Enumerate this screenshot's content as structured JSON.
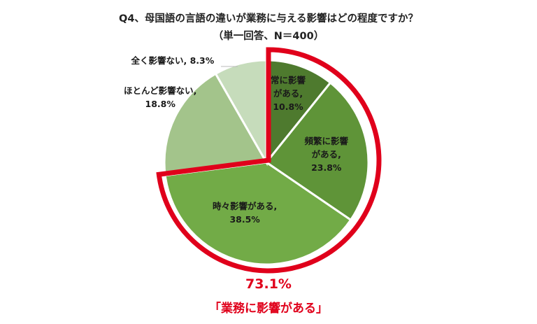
{
  "title": "Q4、母国語の言語の違いが業務に与える影響はどの程度ですか？",
  "subtitle": "（単一回答、N＝400）",
  "colors": {
    "highlight_border": "#e0001b",
    "callout_text": "#e0001b",
    "slice_separator": "#ffffff"
  },
  "chart_data": {
    "type": "pie",
    "unit": "%",
    "slices": [
      {
        "name": "常に影響がある",
        "label_lines": [
          "常に影響",
          "がある,",
          "10.8%"
        ],
        "value": 10.8,
        "color": "#4e7a2e"
      },
      {
        "name": "頻繁に影響がある",
        "label_lines": [
          "頻繁に影響",
          "がある,",
          "23.8%"
        ],
        "value": 23.8,
        "color": "#5f9438"
      },
      {
        "name": "時々影響がある",
        "label_lines": [
          "時々影響がある,",
          "38.5%"
        ],
        "value": 38.5,
        "color": "#72ab47"
      },
      {
        "name": "ほとんど影響ない",
        "label_lines": [
          "ほとんど影響ない,",
          "18.8%"
        ],
        "value": 18.8,
        "color": "#a3c48b"
      },
      {
        "name": "全く影響ない",
        "label_lines": [
          "全く影響ない, 8.3%"
        ],
        "value": 8.3,
        "color": "#c6dcbb"
      }
    ],
    "start_angle_deg": 0,
    "direction": "clockwise",
    "highlight": {
      "slice_indices": [
        0,
        1,
        2
      ],
      "total_text": "73.1%",
      "caption": "「業務に影響がある」"
    }
  }
}
